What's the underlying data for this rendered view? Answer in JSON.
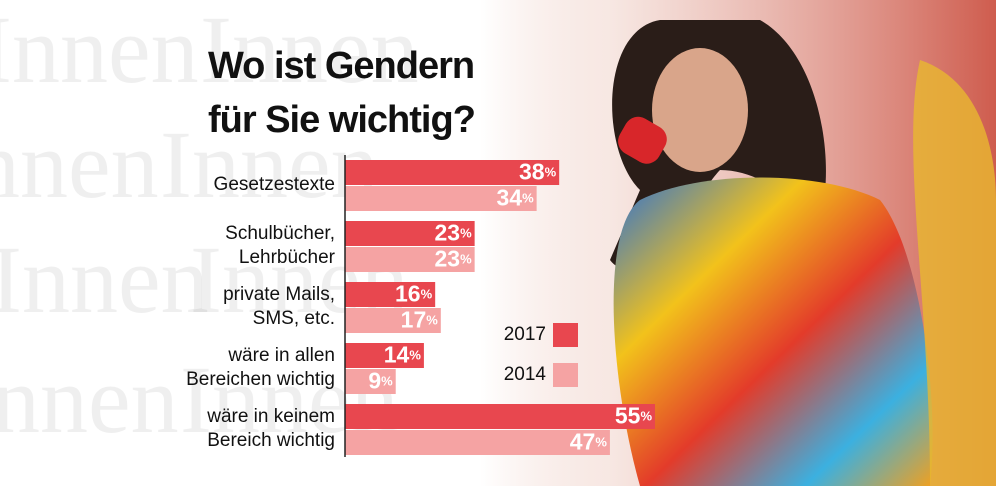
{
  "chart_data": {
    "type": "bar",
    "orientation": "horizontal",
    "title": [
      "Wo ist Gendern",
      "für Sie wichtig?"
    ],
    "watermark": "Innen",
    "categories": [
      [
        "Gesetzestexte"
      ],
      [
        "Schulbücher,",
        "Lehrbücher"
      ],
      [
        "private Mails,",
        "SMS, etc."
      ],
      [
        "wäre in allen",
        "Bereichen wichtig"
      ],
      [
        "wäre in keinem",
        "Bereich wichtig"
      ]
    ],
    "series": [
      {
        "name": "2017",
        "color": "#e8474f",
        "values": [
          38,
          23,
          16,
          14,
          55
        ],
        "value_labels": [
          "38%",
          "23%",
          "16%",
          "14%",
          "55%"
        ]
      },
      {
        "name": "2014",
        "color": "#f5a3a3",
        "values": [
          34,
          23,
          17,
          9,
          47
        ],
        "value_labels": [
          "34%",
          "23%",
          "17%",
          "9%",
          "47%"
        ]
      }
    ],
    "xlim": [
      0,
      55
    ]
  }
}
